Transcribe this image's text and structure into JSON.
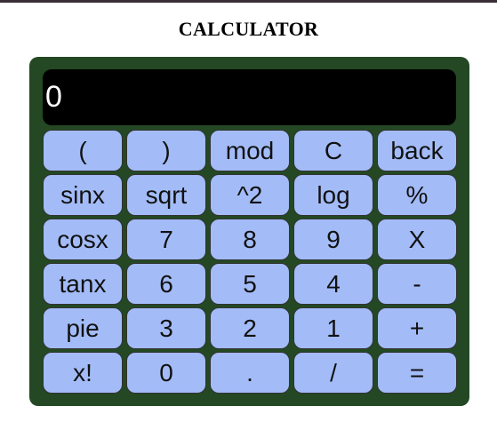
{
  "page": {
    "title": "CALCULATOR"
  },
  "display": {
    "value": "0"
  },
  "keys": [
    {
      "label": "(",
      "name": "open-paren-button"
    },
    {
      "label": ")",
      "name": "close-paren-button"
    },
    {
      "label": "mod",
      "name": "mod-button"
    },
    {
      "label": "C",
      "name": "clear-button"
    },
    {
      "label": "back",
      "name": "backspace-button"
    },
    {
      "label": "sinx",
      "name": "sin-button"
    },
    {
      "label": "sqrt",
      "name": "sqrt-button"
    },
    {
      "label": "^2",
      "name": "square-button"
    },
    {
      "label": "log",
      "name": "log-button"
    },
    {
      "label": "%",
      "name": "percent-button"
    },
    {
      "label": "cosx",
      "name": "cos-button"
    },
    {
      "label": "7",
      "name": "digit-7-button"
    },
    {
      "label": "8",
      "name": "digit-8-button"
    },
    {
      "label": "9",
      "name": "digit-9-button"
    },
    {
      "label": "X",
      "name": "multiply-button"
    },
    {
      "label": "tanx",
      "name": "tan-button"
    },
    {
      "label": "6",
      "name": "digit-6-button"
    },
    {
      "label": "5",
      "name": "digit-5-button"
    },
    {
      "label": "4",
      "name": "digit-4-button"
    },
    {
      "label": "-",
      "name": "subtract-button"
    },
    {
      "label": "pie",
      "name": "pi-button"
    },
    {
      "label": "3",
      "name": "digit-3-button"
    },
    {
      "label": "2",
      "name": "digit-2-button"
    },
    {
      "label": "1",
      "name": "digit-1-button"
    },
    {
      "label": "+",
      "name": "add-button"
    },
    {
      "label": "x!",
      "name": "factorial-button"
    },
    {
      "label": "0",
      "name": "digit-0-button"
    },
    {
      "label": ".",
      "name": "decimal-button"
    },
    {
      "label": "/",
      "name": "divide-button"
    },
    {
      "label": "=",
      "name": "equals-button"
    }
  ],
  "colors": {
    "body_bg": "#234823",
    "key_bg": "#a3bcf8",
    "display_bg": "#000000",
    "display_text": "#ffffff"
  }
}
